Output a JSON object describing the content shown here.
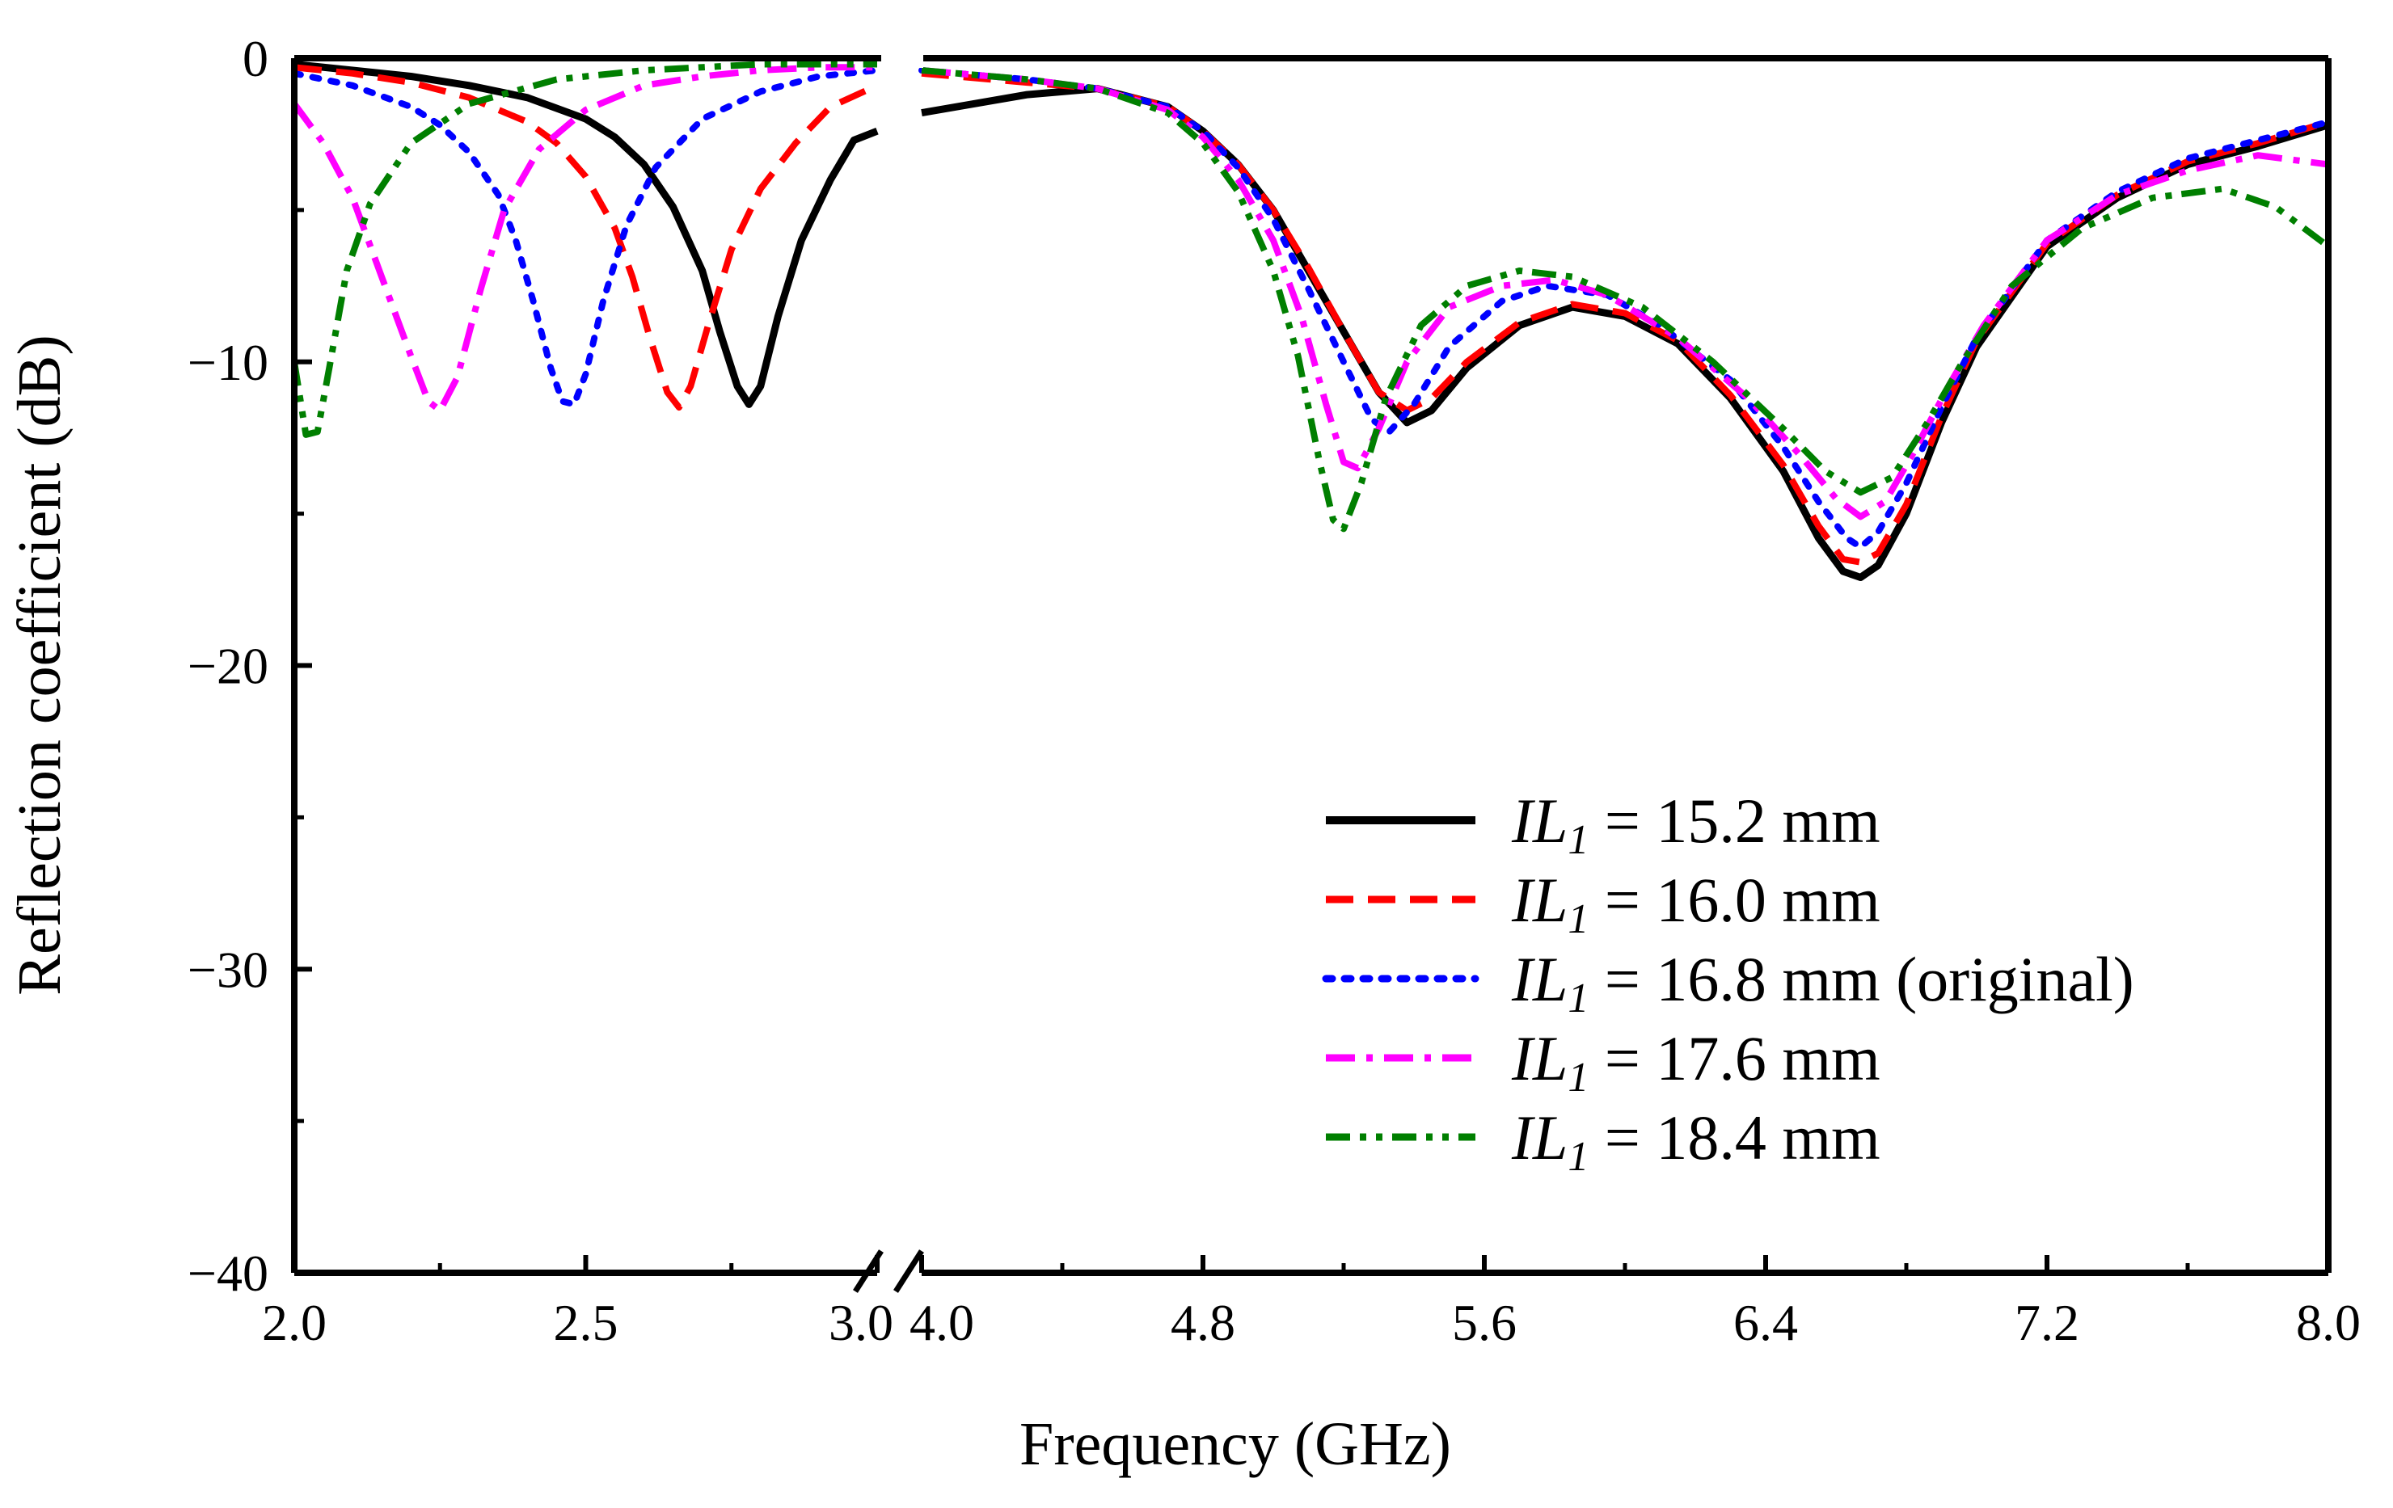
{
  "chart_data": {
    "type": "line",
    "xlabel": "Frequency (GHz)",
    "ylabel": "Reflection coefficient (dB)",
    "ylim": [
      -40,
      0
    ],
    "yticks": [
      {
        "value": 0,
        "label": "0"
      },
      {
        "value": -10,
        "label": "−10"
      },
      {
        "value": -20,
        "label": "−20"
      },
      {
        "value": -30,
        "label": "−30"
      },
      {
        "value": -40,
        "label": "−40"
      }
    ],
    "x_broken_axis": {
      "left_segment": {
        "range": [
          2.0,
          3.0
        ],
        "ticks": [
          "2.0",
          "2.5",
          "3.0"
        ]
      },
      "right_segment": {
        "range": [
          4.0,
          8.0
        ],
        "ticks": [
          "4.0",
          "4.8",
          "5.6",
          "6.4",
          "7.2",
          "8.0"
        ]
      }
    },
    "legend_position": "lower-right",
    "series": [
      {
        "name": "IL1 = 15.2 mm",
        "legend_italic": "IL",
        "legend_sub": "1",
        "legend_rest": " = 15.2 mm",
        "color": "#000000",
        "style": "solid",
        "left": [
          [
            2.0,
            -0.2
          ],
          [
            2.1,
            -0.4
          ],
          [
            2.2,
            -0.6
          ],
          [
            2.3,
            -0.9
          ],
          [
            2.4,
            -1.3
          ],
          [
            2.5,
            -2.0
          ],
          [
            2.55,
            -2.6
          ],
          [
            2.6,
            -3.5
          ],
          [
            2.65,
            -4.9
          ],
          [
            2.7,
            -7.0
          ],
          [
            2.73,
            -9.0
          ],
          [
            2.76,
            -10.8
          ],
          [
            2.78,
            -11.4
          ],
          [
            2.8,
            -10.8
          ],
          [
            2.83,
            -8.5
          ],
          [
            2.87,
            -6.0
          ],
          [
            2.92,
            -4.0
          ],
          [
            2.96,
            -2.7
          ],
          [
            3.0,
            -2.4
          ]
        ],
        "right": [
          [
            4.0,
            -1.8
          ],
          [
            4.3,
            -1.2
          ],
          [
            4.5,
            -1.0
          ],
          [
            4.7,
            -1.6
          ],
          [
            4.8,
            -2.4
          ],
          [
            4.9,
            -3.5
          ],
          [
            5.0,
            -5.0
          ],
          [
            5.1,
            -7.0
          ],
          [
            5.2,
            -9.0
          ],
          [
            5.3,
            -11.0
          ],
          [
            5.38,
            -12.0
          ],
          [
            5.45,
            -11.6
          ],
          [
            5.55,
            -10.2
          ],
          [
            5.7,
            -8.8
          ],
          [
            5.85,
            -8.2
          ],
          [
            6.0,
            -8.5
          ],
          [
            6.15,
            -9.4
          ],
          [
            6.3,
            -11.2
          ],
          [
            6.45,
            -13.6
          ],
          [
            6.55,
            -15.8
          ],
          [
            6.62,
            -16.9
          ],
          [
            6.67,
            -17.1
          ],
          [
            6.72,
            -16.7
          ],
          [
            6.8,
            -15.0
          ],
          [
            6.9,
            -12.0
          ],
          [
            7.0,
            -9.5
          ],
          [
            7.2,
            -6.2
          ],
          [
            7.4,
            -4.6
          ],
          [
            7.6,
            -3.5
          ],
          [
            7.8,
            -2.9
          ],
          [
            8.0,
            -2.2
          ]
        ]
      },
      {
        "name": "IL1 = 16.0 mm",
        "legend_italic": "IL",
        "legend_sub": "1",
        "legend_rest": " = 16.0 mm",
        "color": "#ff0000",
        "style": "dashed",
        "left": [
          [
            2.0,
            -0.3
          ],
          [
            2.1,
            -0.5
          ],
          [
            2.2,
            -0.8
          ],
          [
            2.3,
            -1.3
          ],
          [
            2.4,
            -2.1
          ],
          [
            2.45,
            -2.8
          ],
          [
            2.5,
            -3.9
          ],
          [
            2.55,
            -5.6
          ],
          [
            2.58,
            -7.2
          ],
          [
            2.61,
            -9.2
          ],
          [
            2.64,
            -11.0
          ],
          [
            2.66,
            -11.5
          ],
          [
            2.68,
            -10.8
          ],
          [
            2.71,
            -8.8
          ],
          [
            2.75,
            -6.3
          ],
          [
            2.8,
            -4.3
          ],
          [
            2.86,
            -2.8
          ],
          [
            2.92,
            -1.6
          ],
          [
            3.0,
            -0.9
          ]
        ],
        "right": [
          [
            4.0,
            -0.5
          ],
          [
            4.3,
            -0.8
          ],
          [
            4.5,
            -1.0
          ],
          [
            4.7,
            -1.6
          ],
          [
            4.8,
            -2.4
          ],
          [
            4.9,
            -3.5
          ],
          [
            5.0,
            -5.0
          ],
          [
            5.1,
            -6.9
          ],
          [
            5.2,
            -9.0
          ],
          [
            5.3,
            -11.0
          ],
          [
            5.38,
            -11.6
          ],
          [
            5.45,
            -11.2
          ],
          [
            5.55,
            -10.0
          ],
          [
            5.7,
            -8.7
          ],
          [
            5.85,
            -8.1
          ],
          [
            6.0,
            -8.4
          ],
          [
            6.15,
            -9.3
          ],
          [
            6.3,
            -11.1
          ],
          [
            6.45,
            -13.4
          ],
          [
            6.55,
            -15.4
          ],
          [
            6.62,
            -16.5
          ],
          [
            6.67,
            -16.6
          ],
          [
            6.72,
            -16.3
          ],
          [
            6.8,
            -14.7
          ],
          [
            6.9,
            -11.8
          ],
          [
            7.0,
            -9.3
          ],
          [
            7.2,
            -6.1
          ],
          [
            7.4,
            -4.5
          ],
          [
            7.6,
            -3.4
          ],
          [
            7.8,
            -2.8
          ],
          [
            8.0,
            -2.1
          ]
        ]
      },
      {
        "name": "IL1 = 16.8 mm (original)",
        "legend_italic": "IL",
        "legend_sub": "1",
        "legend_rest": " = 16.8 mm (original)",
        "color": "#0000ff",
        "style": "dotted",
        "left": [
          [
            2.0,
            -0.5
          ],
          [
            2.1,
            -0.9
          ],
          [
            2.2,
            -1.6
          ],
          [
            2.25,
            -2.2
          ],
          [
            2.3,
            -3.1
          ],
          [
            2.35,
            -4.5
          ],
          [
            2.38,
            -6.0
          ],
          [
            2.41,
            -8.0
          ],
          [
            2.44,
            -10.2
          ],
          [
            2.46,
            -11.3
          ],
          [
            2.48,
            -11.4
          ],
          [
            2.5,
            -10.4
          ],
          [
            2.53,
            -8.0
          ],
          [
            2.57,
            -5.5
          ],
          [
            2.62,
            -3.6
          ],
          [
            2.7,
            -2.0
          ],
          [
            2.8,
            -1.1
          ],
          [
            2.9,
            -0.6
          ],
          [
            3.0,
            -0.4
          ]
        ],
        "right": [
          [
            4.0,
            -0.4
          ],
          [
            4.3,
            -0.7
          ],
          [
            4.5,
            -1.0
          ],
          [
            4.7,
            -1.6
          ],
          [
            4.8,
            -2.4
          ],
          [
            4.9,
            -3.6
          ],
          [
            5.0,
            -5.3
          ],
          [
            5.1,
            -7.6
          ],
          [
            5.2,
            -10.0
          ],
          [
            5.28,
            -11.9
          ],
          [
            5.33,
            -12.3
          ],
          [
            5.4,
            -11.4
          ],
          [
            5.5,
            -9.5
          ],
          [
            5.65,
            -8.0
          ],
          [
            5.78,
            -7.5
          ],
          [
            5.95,
            -7.8
          ],
          [
            6.1,
            -8.8
          ],
          [
            6.3,
            -10.6
          ],
          [
            6.45,
            -12.8
          ],
          [
            6.55,
            -14.6
          ],
          [
            6.63,
            -15.8
          ],
          [
            6.67,
            -16.1
          ],
          [
            6.72,
            -15.6
          ],
          [
            6.8,
            -14.0
          ],
          [
            6.9,
            -11.5
          ],
          [
            7.0,
            -9.2
          ],
          [
            7.2,
            -6.0
          ],
          [
            7.4,
            -4.4
          ],
          [
            7.6,
            -3.3
          ],
          [
            7.8,
            -2.7
          ],
          [
            8.0,
            -2.1
          ]
        ]
      },
      {
        "name": "IL1 = 17.6 mm",
        "legend_italic": "IL",
        "legend_sub": "1",
        "legend_rest": " = 17.6 mm",
        "color": "#ff00ff",
        "style": "dashdot",
        "left": [
          [
            2.0,
            -1.5
          ],
          [
            2.05,
            -2.8
          ],
          [
            2.1,
            -4.6
          ],
          [
            2.15,
            -7.2
          ],
          [
            2.2,
            -9.8
          ],
          [
            2.23,
            -11.3
          ],
          [
            2.25,
            -11.6
          ],
          [
            2.28,
            -10.5
          ],
          [
            2.32,
            -7.6
          ],
          [
            2.36,
            -5.0
          ],
          [
            2.42,
            -3.0
          ],
          [
            2.5,
            -1.7
          ],
          [
            2.6,
            -0.9
          ],
          [
            2.7,
            -0.6
          ],
          [
            2.8,
            -0.4
          ],
          [
            2.9,
            -0.3
          ],
          [
            3.0,
            -0.3
          ]
        ],
        "right": [
          [
            4.0,
            -0.4
          ],
          [
            4.3,
            -0.7
          ],
          [
            4.5,
            -1.0
          ],
          [
            4.7,
            -1.7
          ],
          [
            4.8,
            -2.6
          ],
          [
            4.9,
            -4.0
          ],
          [
            5.0,
            -6.0
          ],
          [
            5.08,
            -8.5
          ],
          [
            5.15,
            -11.4
          ],
          [
            5.2,
            -13.3
          ],
          [
            5.24,
            -13.5
          ],
          [
            5.3,
            -12.2
          ],
          [
            5.38,
            -10.0
          ],
          [
            5.5,
            -8.2
          ],
          [
            5.65,
            -7.5
          ],
          [
            5.8,
            -7.3
          ],
          [
            5.95,
            -7.8
          ],
          [
            6.15,
            -9.2
          ],
          [
            6.35,
            -11.2
          ],
          [
            6.5,
            -13.1
          ],
          [
            6.6,
            -14.5
          ],
          [
            6.67,
            -15.1
          ],
          [
            6.74,
            -14.6
          ],
          [
            6.82,
            -13.0
          ],
          [
            6.92,
            -10.8
          ],
          [
            7.02,
            -8.8
          ],
          [
            7.2,
            -6.0
          ],
          [
            7.4,
            -4.5
          ],
          [
            7.6,
            -3.7
          ],
          [
            7.8,
            -3.2
          ],
          [
            8.0,
            -3.5
          ]
        ]
      },
      {
        "name": "IL1 = 18.4 mm",
        "legend_italic": "IL",
        "legend_sub": "1",
        "legend_rest": " = 18.4 mm",
        "color": "#007f00",
        "style": "dashdotdot",
        "left": [
          [
            2.0,
            -10.0
          ],
          [
            2.02,
            -12.4
          ],
          [
            2.04,
            -12.3
          ],
          [
            2.06,
            -10.2
          ],
          [
            2.09,
            -7.0
          ],
          [
            2.13,
            -4.8
          ],
          [
            2.2,
            -2.8
          ],
          [
            2.3,
            -1.5
          ],
          [
            2.45,
            -0.7
          ],
          [
            2.6,
            -0.4
          ],
          [
            2.8,
            -0.2
          ],
          [
            3.0,
            -0.2
          ]
        ],
        "right": [
          [
            4.0,
            -0.4
          ],
          [
            4.3,
            -0.7
          ],
          [
            4.5,
            -1.0
          ],
          [
            4.7,
            -1.8
          ],
          [
            4.8,
            -2.8
          ],
          [
            4.9,
            -4.4
          ],
          [
            5.0,
            -7.0
          ],
          [
            5.07,
            -9.8
          ],
          [
            5.13,
            -13.2
          ],
          [
            5.17,
            -15.2
          ],
          [
            5.2,
            -15.5
          ],
          [
            5.25,
            -14.0
          ],
          [
            5.32,
            -11.2
          ],
          [
            5.42,
            -8.8
          ],
          [
            5.55,
            -7.5
          ],
          [
            5.7,
            -7.0
          ],
          [
            5.85,
            -7.2
          ],
          [
            6.05,
            -8.2
          ],
          [
            6.25,
            -10.0
          ],
          [
            6.45,
            -12.2
          ],
          [
            6.57,
            -13.6
          ],
          [
            6.67,
            -14.3
          ],
          [
            6.76,
            -13.8
          ],
          [
            6.86,
            -12.0
          ],
          [
            6.96,
            -10.0
          ],
          [
            7.1,
            -7.5
          ],
          [
            7.3,
            -5.6
          ],
          [
            7.5,
            -4.6
          ],
          [
            7.7,
            -4.3
          ],
          [
            7.85,
            -4.9
          ],
          [
            8.0,
            -6.2
          ]
        ]
      }
    ]
  }
}
